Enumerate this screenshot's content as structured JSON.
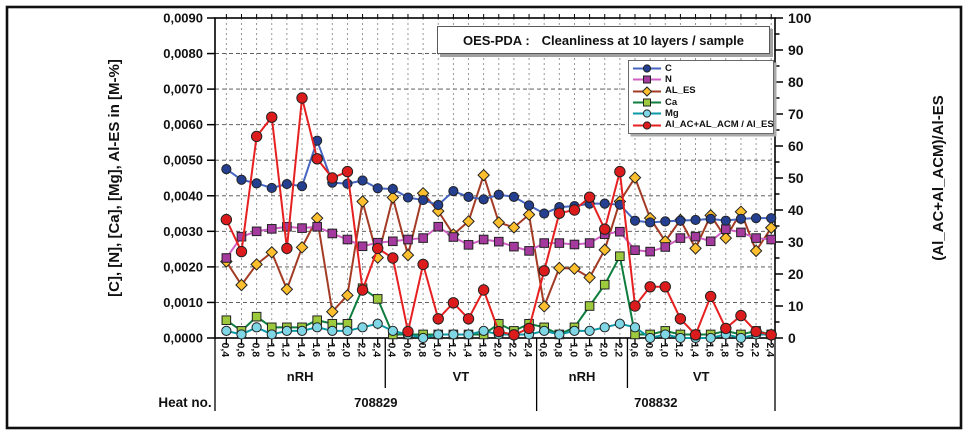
{
  "figure": {
    "title_prefix": "OES-PDA :",
    "title": "Cleanliness at 10 layers / sample"
  },
  "chart_data": {
    "type": "line",
    "title": "OES-PDA : Cleanliness at 10 layers / sample",
    "legend_position": "upper right",
    "grid": {
      "vertical": "dashed",
      "horizontal": "dashed"
    },
    "y_left": {
      "label": "[C], [N], [Ca], [Mg], Al-ES in [M-%]",
      "min": 0,
      "max": 0.009,
      "step": 0.001,
      "tick_labels": [
        "0,0000",
        "0,0010",
        "0,0020",
        "0,0030",
        "0,0040",
        "0,0050",
        "0,0060",
        "0,0070",
        "0,0080",
        "0,0090"
      ]
    },
    "y_right": {
      "label": "(Al_AC+Al_ACM)/Al-ES",
      "min": 0,
      "max": 100,
      "step": 10,
      "minor_step": 5,
      "tick_labels": [
        "0",
        "10",
        "20",
        "30",
        "40",
        "50",
        "60",
        "70",
        "80",
        "90",
        "100"
      ]
    },
    "x": {
      "row_label": "Heat no.",
      "tick_labels": [
        "0,4",
        "0,6",
        "0,8",
        "1,0",
        "1,2",
        "1,4",
        "1,6",
        "1,8",
        "2,0",
        "2,2",
        "2,4",
        "0,4",
        "0,6",
        "0,8",
        "1,0",
        "1,2",
        "1,4",
        "1,8",
        "2,0",
        "2,2",
        "2,4",
        "0,6",
        "0,8",
        "1,0",
        "1,6",
        "2,0",
        "2,2",
        "0,6",
        "0,8",
        "1,0",
        "1,2",
        "1,4",
        "1,6",
        "1,8",
        "2,0",
        "2,2",
        "2,4"
      ],
      "groups": [
        {
          "label": "nRH",
          "points": 11
        },
        {
          "label": "VT",
          "points": 10
        },
        {
          "label": "nRH",
          "points": 6
        },
        {
          "label": "VT",
          "points": 10
        }
      ],
      "heats": [
        {
          "label": "708829",
          "points": 21
        },
        {
          "label": "708832",
          "points": 16
        }
      ]
    },
    "series": [
      {
        "name": "C",
        "axis": "left",
        "marker": "circle",
        "line_color": "#4565c0",
        "marker_color": "#243f8f",
        "values": [
          0.00475,
          0.00445,
          0.00435,
          0.00422,
          0.00433,
          0.00427,
          0.00555,
          0.00437,
          0.00434,
          0.00443,
          0.00421,
          0.00419,
          0.00395,
          0.00388,
          0.00374,
          0.00413,
          0.00397,
          0.0039,
          0.00403,
          0.00397,
          0.00373,
          0.0035,
          0.00368,
          0.00371,
          0.00378,
          0.00378,
          0.00375,
          0.0033,
          0.00325,
          0.00328,
          0.0033,
          0.00332,
          0.00335,
          0.0033,
          0.00335,
          0.00337,
          0.00337
        ]
      },
      {
        "name": "N",
        "axis": "left",
        "marker": "square",
        "line_color": "#cf5fc4",
        "marker_color": "#a43a9e",
        "values": [
          0.00225,
          0.00285,
          0.003,
          0.00307,
          0.00313,
          0.00309,
          0.00313,
          0.00294,
          0.00277,
          0.00258,
          0.00268,
          0.00272,
          0.00277,
          0.00281,
          0.00313,
          0.00284,
          0.00262,
          0.00277,
          0.00271,
          0.00257,
          0.00245,
          0.00267,
          0.00267,
          0.00263,
          0.00267,
          0.00292,
          0.00299,
          0.00247,
          0.00243,
          0.00256,
          0.00281,
          0.00285,
          0.00272,
          0.00306,
          0.00297,
          0.00281,
          0.00277
        ]
      },
      {
        "name": "AL_ES",
        "axis": "left",
        "marker": "diamond",
        "line_color": "#a33b25",
        "marker_color": "#fdbf2d",
        "values": [
          0.00215,
          0.00149,
          0.00207,
          0.00241,
          0.00137,
          0.00255,
          0.00337,
          0.00074,
          0.0012,
          0.00384,
          0.00226,
          0.00395,
          0.00233,
          0.00407,
          0.00357,
          0.00291,
          0.00328,
          0.00458,
          0.00325,
          0.00311,
          0.00347,
          0.00089,
          0.00197,
          0.00195,
          0.0017,
          0.00248,
          0.00384,
          0.00451,
          0.00337,
          0.00272,
          0.00332,
          0.00252,
          0.00345,
          0.00281,
          0.00355,
          0.00245,
          0.0031
        ]
      },
      {
        "name": "Ca",
        "axis": "left",
        "marker": "square",
        "line_color": "#0e7d3e",
        "marker_color": "#9dc93d",
        "values": [
          0.0005,
          0.0002,
          0.0006,
          0.0003,
          0.0003,
          0.0003,
          0.0005,
          0.0004,
          0.0004,
          0.0014,
          0.0011,
          0.0001,
          0.0001,
          0.0001,
          0.0001,
          0.0001,
          0.0001,
          0.0001,
          0.0004,
          0.0002,
          0.0004,
          0.0003,
          0.0001,
          0.0003,
          0.0009,
          0.0015,
          0.0023,
          0.0001,
          0.0001,
          0.0002,
          0.0001,
          0.0001,
          0.0001,
          0.0002,
          0.0001,
          0.0002,
          0.0001
        ]
      },
      {
        "name": "Mg",
        "axis": "left",
        "marker": "circle",
        "line_color": "#0b9aa6",
        "marker_color": "#7fd6e4",
        "values": [
          0.0002,
          0.0001,
          0.0003,
          0.0001,
          0.0002,
          0.0002,
          0.0003,
          0.0002,
          0.0002,
          0.0003,
          0.0004,
          0.0002,
          0.0001,
          0.0,
          0.0001,
          0.0001,
          0.0001,
          0.0002,
          0.0001,
          0.0001,
          0.0001,
          0.0002,
          0.0001,
          0.0002,
          0.0002,
          0.0003,
          0.0004,
          0.0003,
          0.0,
          0.0001,
          0.0,
          0.0,
          0.0,
          0.0001,
          0.0,
          0.0001,
          0.0001
        ]
      },
      {
        "name": "Al_AC+AL_ACM / Al_ES",
        "axis": "right",
        "marker": "circle",
        "line_color": "#e62020",
        "marker_color": "#dc1c1c",
        "values": [
          37,
          27,
          63,
          69,
          28,
          75,
          56,
          50,
          52,
          15,
          28,
          25,
          2,
          23,
          6,
          11,
          6,
          15,
          2,
          1,
          3,
          21,
          39,
          40,
          44,
          34,
          52,
          10,
          16,
          16,
          6,
          1,
          13,
          3,
          7,
          2,
          1
        ]
      }
    ]
  }
}
